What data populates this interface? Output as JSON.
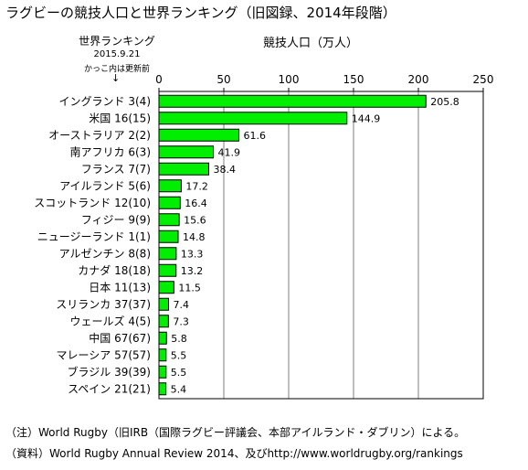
{
  "header": {
    "title": "ラグビーの競技人口と世界ランキング（旧図録、2014年段階）",
    "rank_heading": "世界ランキング",
    "rank_date": "2015.9.21",
    "rank_note": "かっこ内は更新前",
    "rank_arrow": "↓",
    "axis_heading": "競技人口（万人）"
  },
  "chart_data": {
    "type": "bar",
    "orientation": "horizontal",
    "bar_color": "#00ee00",
    "bar_border": "#000000",
    "xlim": [
      0,
      250
    ],
    "xticks": [
      "0",
      "50",
      "100",
      "150",
      "200",
      "250"
    ],
    "grid": true,
    "categories": [
      {
        "name": "イングランド",
        "rank": "3",
        "prev": "4",
        "value": 205.8,
        "label": "205.8"
      },
      {
        "name": "米国",
        "rank": "16",
        "prev": "15",
        "value": 144.9,
        "label": "144.9"
      },
      {
        "name": "オーストラリア",
        "rank": "2",
        "prev": "2",
        "value": 61.6,
        "label": "61.6"
      },
      {
        "name": "南アフリカ",
        "rank": "6",
        "prev": "3",
        "value": 41.9,
        "label": "41.9"
      },
      {
        "name": "フランス",
        "rank": "7",
        "prev": "7",
        "value": 38.4,
        "label": "38.4"
      },
      {
        "name": "アイルランド",
        "rank": "5",
        "prev": "6",
        "value": 17.2,
        "label": "17.2"
      },
      {
        "name": "スコットランド",
        "rank": "12",
        "prev": "10",
        "value": 16.4,
        "label": "16.4"
      },
      {
        "name": "フィジー",
        "rank": "9",
        "prev": "9",
        "value": 15.6,
        "label": "15.6"
      },
      {
        "name": "ニュージーランド",
        "rank": "1",
        "prev": "1",
        "value": 14.8,
        "label": "14.8"
      },
      {
        "name": "アルゼンチン",
        "rank": "8",
        "prev": "8",
        "value": 13.3,
        "label": "13.3"
      },
      {
        "name": "カナダ",
        "rank": "18",
        "prev": "18",
        "value": 13.2,
        "label": "13.2"
      },
      {
        "name": "日本",
        "rank": "11",
        "prev": "13",
        "value": 11.5,
        "label": "11.5"
      },
      {
        "name": "スリランカ",
        "rank": "37",
        "prev": "37",
        "value": 7.4,
        "label": "7.4"
      },
      {
        "name": "ウェールズ",
        "rank": "4",
        "prev": "5",
        "value": 7.3,
        "label": "7.3"
      },
      {
        "name": "中国",
        "rank": "67",
        "prev": "67",
        "value": 5.8,
        "label": "5.8"
      },
      {
        "name": "マレーシア",
        "rank": "57",
        "prev": "57",
        "value": 5.5,
        "label": "5.5"
      },
      {
        "name": "ブラジル",
        "rank": "39",
        "prev": "39",
        "value": 5.5,
        "label": "5.5"
      },
      {
        "name": "スペイン",
        "rank": "21",
        "prev": "21",
        "value": 5.4,
        "label": "5.4"
      }
    ]
  },
  "footer": {
    "note": "（注）World Rugby（旧IRB（国際ラグビー評議会、本部アイルランド・ダブリン）による。",
    "source": "（資料）World Rugby Annual Review 2014、及びhttp://www.worldrugby.org/rankings"
  }
}
